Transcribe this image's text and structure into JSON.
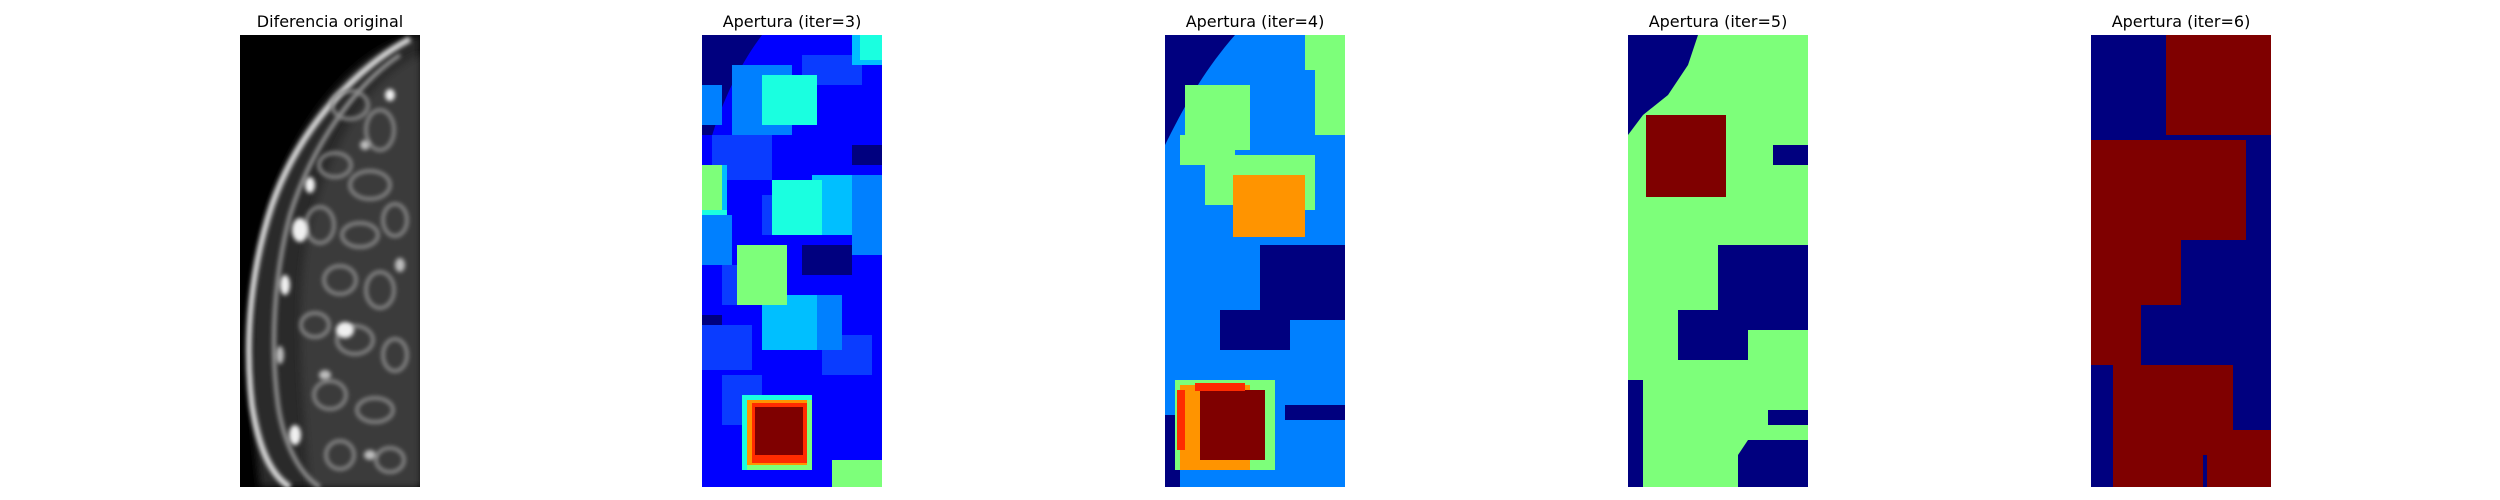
{
  "panels": [
    {
      "title": "Diferencia original",
      "kind": "grayscale"
    },
    {
      "title": "Apertura (iter=3)",
      "kind": "jet-segments"
    },
    {
      "title": "Apertura (iter=4)",
      "kind": "jet-segments"
    },
    {
      "title": "Apertura (iter=5)",
      "kind": "jet-segments"
    },
    {
      "title": "Apertura (iter=6)",
      "kind": "jet-segments"
    }
  ],
  "colors": {
    "navy": "#00007f",
    "blue": "#0000ff",
    "mid_blue": "#0a3cff",
    "azure": "#0080ff",
    "sky": "#00bfff",
    "cyan": "#1affe0",
    "green": "#7dff7a",
    "orange": "#ff9400",
    "red": "#ff2b00",
    "dark_red": "#7f0000",
    "black": "#000000"
  }
}
